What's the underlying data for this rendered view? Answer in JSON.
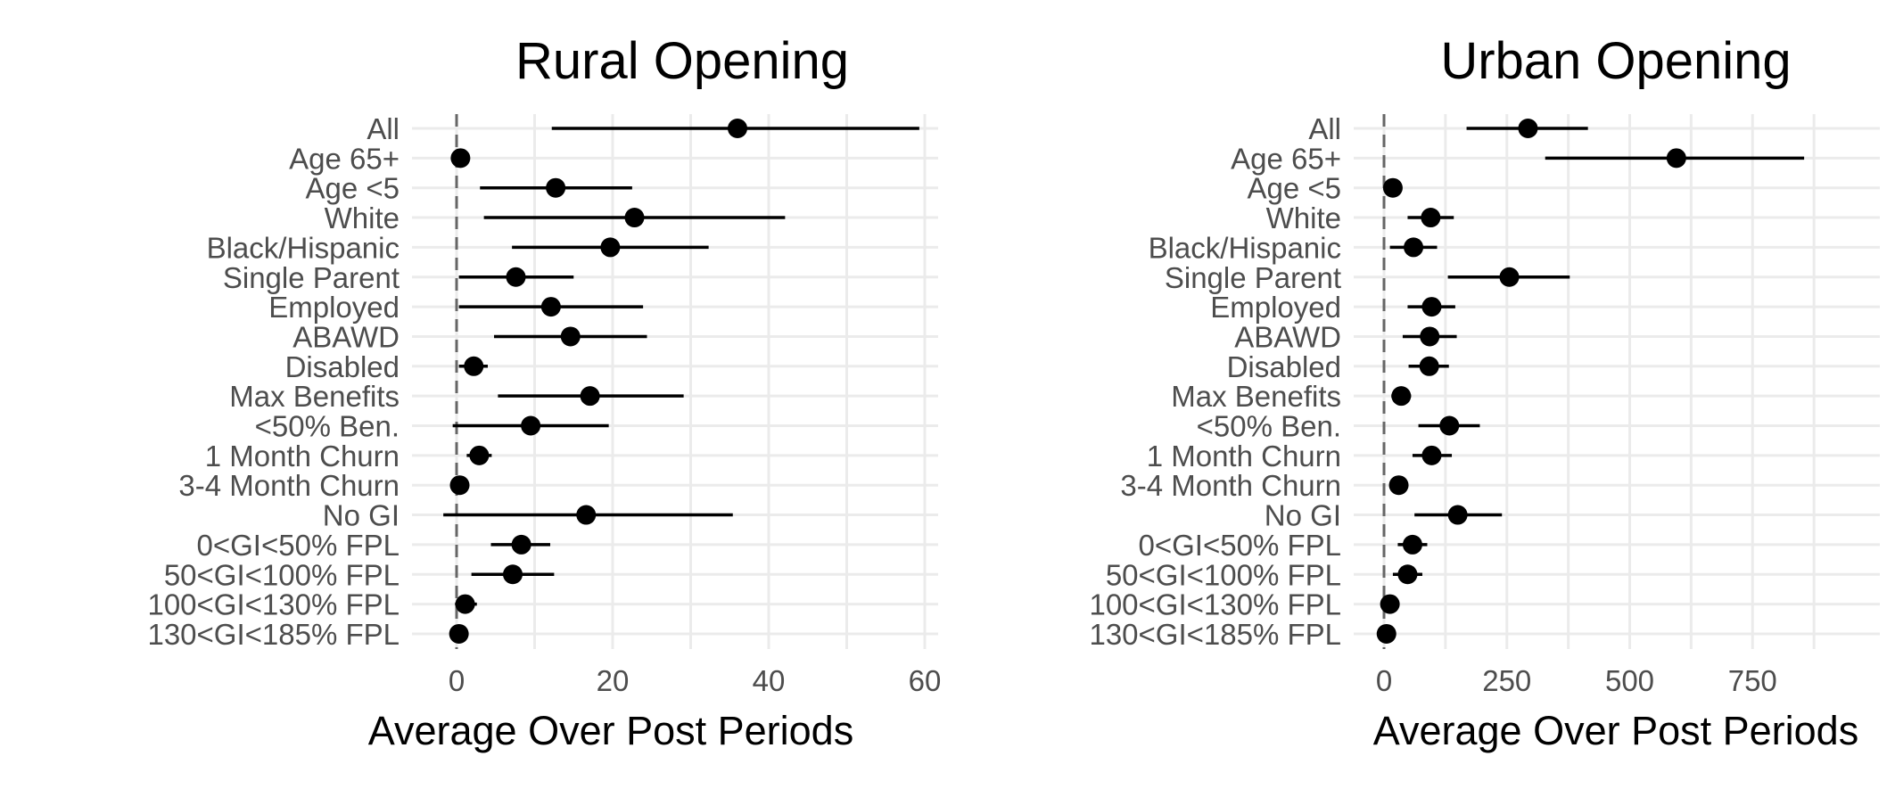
{
  "chart_data": [
    {
      "type": "dot-whisker",
      "title": "Rural Opening",
      "xlabel": "Average Over Post Periods",
      "ylabel": "",
      "xlim": [
        -5,
        62
      ],
      "xticks": [
        0,
        20,
        40,
        60
      ],
      "reference_line": 0,
      "grid": true,
      "categories": [
        "All",
        "Age 65+",
        "Age <5",
        "White",
        "Black/Hispanic",
        "Single Parent",
        "Employed",
        "ABAWD",
        "Disabled",
        "Max Benefits",
        "<50% Ben.",
        "1 Month Churn",
        "3-4 Month Churn",
        "No GI",
        "0<GI<50% FPL",
        "50<GI<100% FPL",
        "100<GI<130% FPL",
        "130<GI<185% FPL"
      ],
      "estimates": [
        36,
        0.5,
        12.7,
        22.8,
        19.7,
        7.6,
        12.1,
        14.6,
        2.2,
        17.1,
        9.5,
        2.9,
        0.4,
        16.6,
        8.3,
        7.2,
        1.1,
        0.3
      ],
      "lower": [
        12.2,
        0,
        3.0,
        3.5,
        7.1,
        0.3,
        0.3,
        4.8,
        0.3,
        5.3,
        -0.5,
        1.3,
        0,
        -1.7,
        4.4,
        1.9,
        -0.2,
        0
      ],
      "upper": [
        59.3,
        1.0,
        22.5,
        42.1,
        32.3,
        15.0,
        23.9,
        24.4,
        4.0,
        29.1,
        19.5,
        4.5,
        0.8,
        35.4,
        12.0,
        12.5,
        2.6,
        0.6
      ]
    },
    {
      "type": "dot-whisker",
      "title": "Urban Opening",
      "xlabel": "Average Over Post Periods",
      "ylabel": "",
      "xlim": [
        -40,
        900
      ],
      "xticks": [
        0,
        250,
        500,
        750
      ],
      "reference_line": 0,
      "grid": true,
      "categories": [
        "All",
        "Age 65+",
        "Age <5",
        "White",
        "Black/Hispanic",
        "Single Parent",
        "Employed",
        "ABAWD",
        "Disabled",
        "Max Benefits",
        "<50% Ben.",
        "1 Month Churn",
        "3-4 Month Churn",
        "No GI",
        "0<GI<50% FPL",
        "50<GI<100% FPL",
        "100<GI<130% FPL",
        "130<GI<185% FPL"
      ],
      "estimates": [
        293,
        595,
        18,
        95,
        60,
        255,
        97,
        93,
        92,
        35,
        133,
        97,
        30,
        150,
        58,
        48,
        12,
        5
      ],
      "lower": [
        168,
        328,
        12,
        48,
        12,
        130,
        48,
        38,
        50,
        15,
        70,
        58,
        20,
        62,
        28,
        18,
        5,
        2
      ],
      "upper": [
        415,
        855,
        24,
        142,
        108,
        378,
        145,
        148,
        132,
        55,
        195,
        138,
        40,
        240,
        88,
        78,
        19,
        8
      ]
    }
  ]
}
